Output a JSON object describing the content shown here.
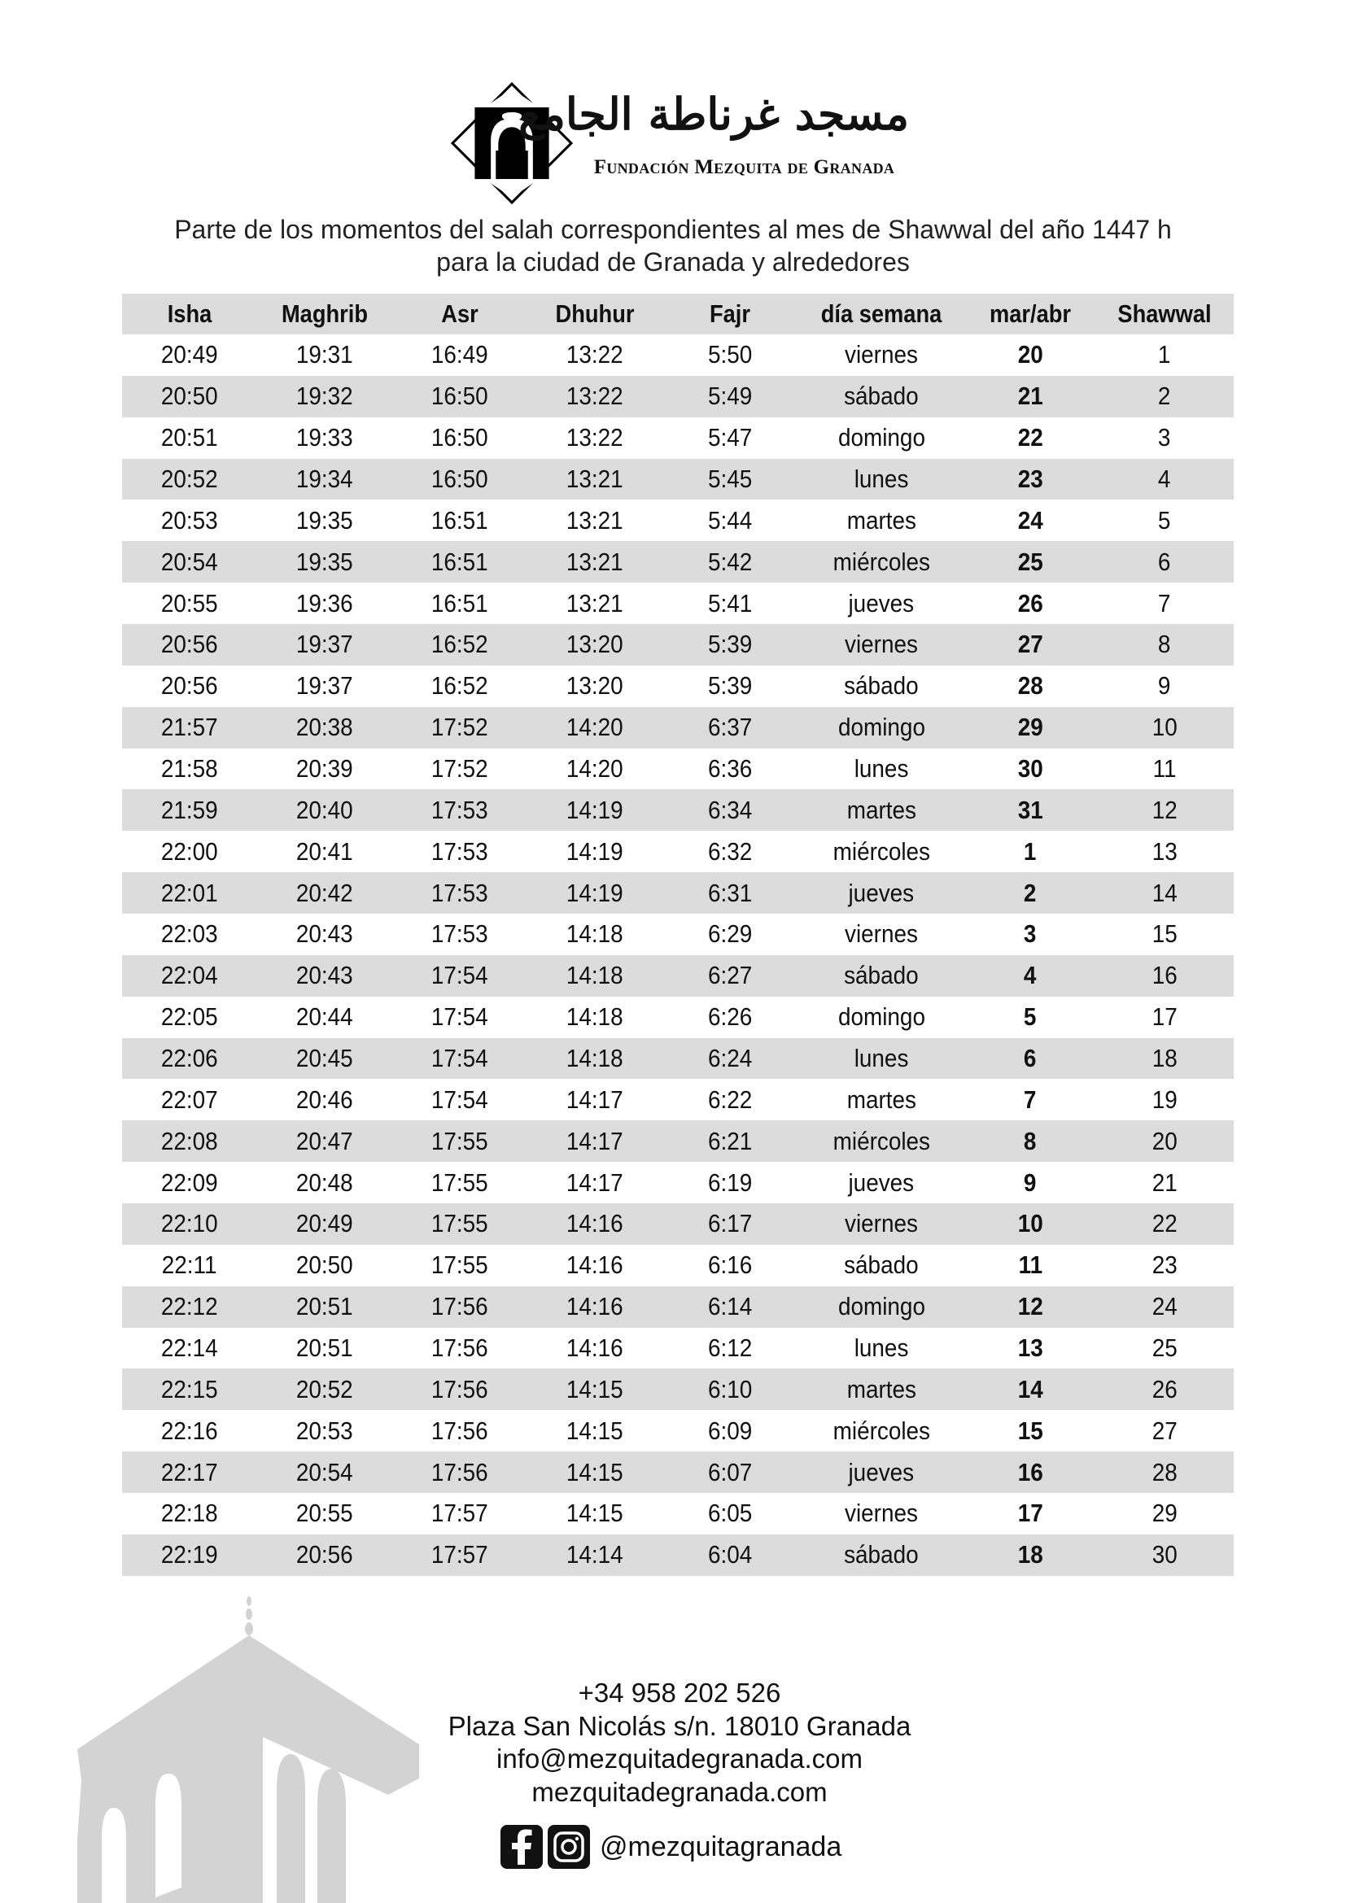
{
  "header": {
    "logo_arabic": "مسجد غرناطة الجامع",
    "logo_latin": "Fundación Mezquita de Granada",
    "subtitle_line1": "Parte de los momentos del salah correspondientes al mes de Shawwal del año 1447 h",
    "subtitle_line2": "para la ciudad de Granada y alrededores"
  },
  "table": {
    "columns": [
      "Isha",
      "Maghrib",
      "Asr",
      "Dhuhur",
      "Fajr",
      "día semana",
      "mar/abr",
      "Shawwal"
    ],
    "rows": [
      [
        "20:49",
        "19:31",
        "16:49",
        "13:22",
        "5:50",
        "viernes",
        "20",
        "1"
      ],
      [
        "20:50",
        "19:32",
        "16:50",
        "13:22",
        "5:49",
        "sábado",
        "21",
        "2"
      ],
      [
        "20:51",
        "19:33",
        "16:50",
        "13:22",
        "5:47",
        "domingo",
        "22",
        "3"
      ],
      [
        "20:52",
        "19:34",
        "16:50",
        "13:21",
        "5:45",
        "lunes",
        "23",
        "4"
      ],
      [
        "20:53",
        "19:35",
        "16:51",
        "13:21",
        "5:44",
        "martes",
        "24",
        "5"
      ],
      [
        "20:54",
        "19:35",
        "16:51",
        "13:21",
        "5:42",
        "miércoles",
        "25",
        "6"
      ],
      [
        "20:55",
        "19:36",
        "16:51",
        "13:21",
        "5:41",
        "jueves",
        "26",
        "7"
      ],
      [
        "20:56",
        "19:37",
        "16:52",
        "13:20",
        "5:39",
        "viernes",
        "27",
        "8"
      ],
      [
        "20:56",
        "19:37",
        "16:52",
        "13:20",
        "5:39",
        "sábado",
        "28",
        "9"
      ],
      [
        "21:57",
        "20:38",
        "17:52",
        "14:20",
        "6:37",
        "domingo",
        "29",
        "10"
      ],
      [
        "21:58",
        "20:39",
        "17:52",
        "14:20",
        "6:36",
        "lunes",
        "30",
        "11"
      ],
      [
        "21:59",
        "20:40",
        "17:53",
        "14:19",
        "6:34",
        "martes",
        "31",
        "12"
      ],
      [
        "22:00",
        "20:41",
        "17:53",
        "14:19",
        "6:32",
        "miércoles",
        "1",
        "13"
      ],
      [
        "22:01",
        "20:42",
        "17:53",
        "14:19",
        "6:31",
        "jueves",
        "2",
        "14"
      ],
      [
        "22:03",
        "20:43",
        "17:53",
        "14:18",
        "6:29",
        "viernes",
        "3",
        "15"
      ],
      [
        "22:04",
        "20:43",
        "17:54",
        "14:18",
        "6:27",
        "sábado",
        "4",
        "16"
      ],
      [
        "22:05",
        "20:44",
        "17:54",
        "14:18",
        "6:26",
        "domingo",
        "5",
        "17"
      ],
      [
        "22:06",
        "20:45",
        "17:54",
        "14:18",
        "6:24",
        "lunes",
        "6",
        "18"
      ],
      [
        "22:07",
        "20:46",
        "17:54",
        "14:17",
        "6:22",
        "martes",
        "7",
        "19"
      ],
      [
        "22:08",
        "20:47",
        "17:55",
        "14:17",
        "6:21",
        "miércoles",
        "8",
        "20"
      ],
      [
        "22:09",
        "20:48",
        "17:55",
        "14:17",
        "6:19",
        "jueves",
        "9",
        "21"
      ],
      [
        "22:10",
        "20:49",
        "17:55",
        "14:16",
        "6:17",
        "viernes",
        "10",
        "22"
      ],
      [
        "22:11",
        "20:50",
        "17:55",
        "14:16",
        "6:16",
        "sábado",
        "11",
        "23"
      ],
      [
        "22:12",
        "20:51",
        "17:56",
        "14:16",
        "6:14",
        "domingo",
        "12",
        "24"
      ],
      [
        "22:14",
        "20:51",
        "17:56",
        "14:16",
        "6:12",
        "lunes",
        "13",
        "25"
      ],
      [
        "22:15",
        "20:52",
        "17:56",
        "14:15",
        "6:10",
        "martes",
        "14",
        "26"
      ],
      [
        "22:16",
        "20:53",
        "17:56",
        "14:15",
        "6:09",
        "miércoles",
        "15",
        "27"
      ],
      [
        "22:17",
        "20:54",
        "17:56",
        "14:15",
        "6:07",
        "jueves",
        "16",
        "28"
      ],
      [
        "22:18",
        "20:55",
        "17:57",
        "14:15",
        "6:05",
        "viernes",
        "17",
        "29"
      ],
      [
        "22:19",
        "20:56",
        "17:57",
        "14:14",
        "6:04",
        "sábado",
        "18",
        "30"
      ]
    ]
  },
  "footer": {
    "phone": "+34 958 202 526",
    "address": "Plaza San Nicolás s/n. 18010 Granada",
    "email": "info@mezquitadegranada.com",
    "website": "mezquitadegranada.com",
    "social_handle": "@mezquitagranada",
    "social_icons": [
      "facebook-icon",
      "instagram-icon"
    ]
  },
  "colors": {
    "row_stripe": "#dcdcdc",
    "building_silhouette": "#d3d3d3"
  }
}
